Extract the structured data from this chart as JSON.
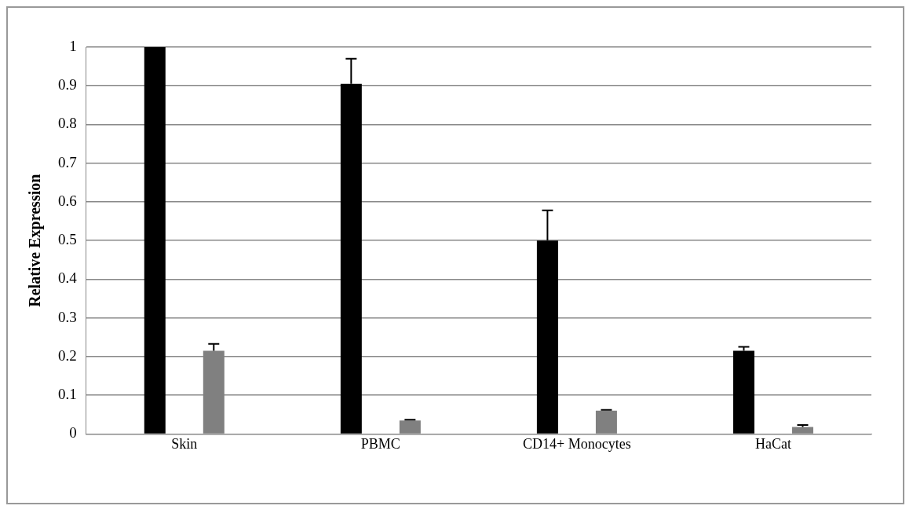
{
  "chart_data": {
    "type": "bar",
    "ylabel": "Relative Expression",
    "categories": [
      "Skin",
      "PBMC",
      "CD14+ Monocytes",
      "HaCat"
    ],
    "series": [
      {
        "color": "#000000",
        "values": [
          1.0,
          0.905,
          0.5,
          0.215
        ],
        "errors": [
          null,
          [
            0.905,
            0.97
          ],
          [
            0.5,
            0.578
          ],
          [
            0.215,
            0.225
          ]
        ]
      },
      {
        "color": "#808080",
        "values": [
          0.215,
          0.035,
          0.06,
          0.018
        ],
        "errors": [
          [
            0.215,
            0.233
          ],
          [
            0.035,
            0.037
          ],
          [
            0.06,
            0.062
          ],
          [
            0.018,
            0.023
          ]
        ]
      }
    ],
    "ylim": [
      0,
      1
    ],
    "yticks": [
      0,
      0.1,
      0.2,
      0.3,
      0.4,
      0.5,
      0.6,
      0.7,
      0.8,
      0.9,
      1
    ],
    "grid": "y",
    "legend": false
  }
}
